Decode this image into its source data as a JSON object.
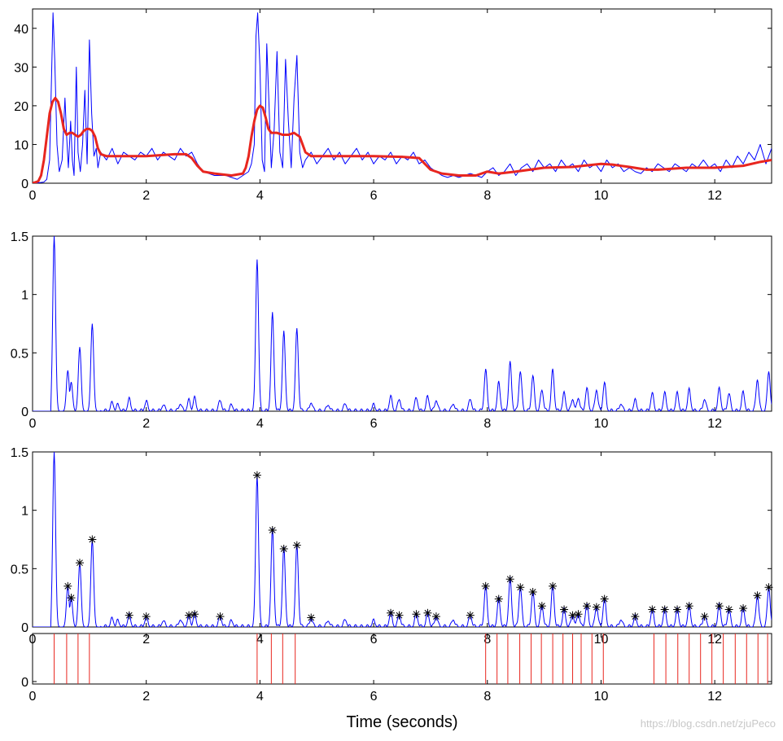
{
  "chart_data": [
    {
      "type": "line",
      "panel": "energy-envelope",
      "xlim": [
        0,
        13
      ],
      "ylim": [
        0,
        45
      ],
      "xticks": [
        "0",
        "2",
        "4",
        "6",
        "8",
        "10",
        "12"
      ],
      "yticks": [
        "0",
        "10",
        "20",
        "30",
        "40"
      ],
      "series": [
        {
          "name": "raw",
          "color": "#0000ff",
          "x": [
            0.0,
            0.1,
            0.2,
            0.25,
            0.3,
            0.33,
            0.36,
            0.39,
            0.43,
            0.47,
            0.52,
            0.57,
            0.6,
            0.63,
            0.67,
            0.7,
            0.73,
            0.77,
            0.8,
            0.84,
            0.88,
            0.92,
            0.96,
            1.0,
            1.04,
            1.08,
            1.12,
            1.15,
            1.2,
            1.3,
            1.4,
            1.5,
            1.6,
            1.7,
            1.8,
            1.9,
            2.0,
            2.1,
            2.2,
            2.3,
            2.4,
            2.5,
            2.6,
            2.7,
            2.8,
            2.9,
            3.0,
            3.2,
            3.4,
            3.6,
            3.7,
            3.8,
            3.85,
            3.9,
            3.93,
            3.96,
            4.0,
            4.04,
            4.08,
            4.12,
            4.16,
            4.2,
            4.25,
            4.3,
            4.35,
            4.4,
            4.45,
            4.5,
            4.55,
            4.6,
            4.65,
            4.7,
            4.75,
            4.8,
            4.9,
            5.0,
            5.1,
            5.2,
            5.3,
            5.4,
            5.5,
            5.6,
            5.7,
            5.8,
            5.9,
            6.0,
            6.1,
            6.2,
            6.3,
            6.4,
            6.5,
            6.6,
            6.7,
            6.8,
            6.9,
            7.0,
            7.1,
            7.2,
            7.3,
            7.4,
            7.5,
            7.6,
            7.7,
            7.8,
            7.9,
            8.0,
            8.1,
            8.2,
            8.3,
            8.4,
            8.5,
            8.6,
            8.7,
            8.8,
            8.9,
            9.0,
            9.1,
            9.2,
            9.3,
            9.4,
            9.5,
            9.6,
            9.7,
            9.8,
            9.9,
            10.0,
            10.1,
            10.2,
            10.3,
            10.4,
            10.5,
            10.6,
            10.7,
            10.8,
            10.9,
            11.0,
            11.1,
            11.2,
            11.3,
            11.4,
            11.5,
            11.6,
            11.7,
            11.8,
            11.9,
            12.0,
            12.1,
            12.2,
            12.3,
            12.4,
            12.5,
            12.6,
            12.7,
            12.8,
            12.9,
            13.0
          ],
          "y": [
            0,
            0.1,
            0.3,
            1,
            6,
            25,
            44,
            32,
            10,
            3,
            6,
            22,
            12,
            4,
            16,
            6,
            2,
            30,
            8,
            3,
            10,
            24,
            5,
            37,
            18,
            7,
            9,
            4,
            8,
            6,
            9,
            5,
            8,
            7,
            6,
            8,
            7,
            9,
            6,
            8,
            7,
            6,
            9,
            7,
            8,
            5,
            3,
            2,
            2,
            1,
            2,
            3,
            5,
            10,
            38,
            44,
            30,
            6,
            3,
            36,
            20,
            4,
            14,
            34,
            8,
            4,
            32,
            16,
            4,
            22,
            33,
            8,
            4,
            6,
            8,
            5,
            7,
            9,
            6,
            8,
            5,
            7,
            9,
            6,
            8,
            5,
            7,
            6,
            8,
            5,
            7,
            6,
            8,
            5,
            6,
            4,
            3,
            2,
            1.5,
            2,
            1.5,
            2,
            2.5,
            2,
            1.5,
            3,
            4,
            2,
            3,
            5,
            2,
            4,
            5,
            3,
            6,
            4,
            5,
            3,
            6,
            4,
            5,
            3,
            6,
            4,
            5,
            3,
            6,
            4,
            5,
            3,
            4,
            3,
            2.5,
            4,
            3,
            5,
            4,
            3,
            5,
            4,
            3,
            5,
            4,
            6,
            4,
            5,
            3,
            6,
            4,
            7,
            5,
            8,
            6,
            10,
            5,
            9
          ]
        },
        {
          "name": "smoothed",
          "color": "#e8261f",
          "x": [
            0.0,
            0.1,
            0.15,
            0.2,
            0.25,
            0.3,
            0.35,
            0.4,
            0.45,
            0.5,
            0.55,
            0.6,
            0.65,
            0.7,
            0.75,
            0.8,
            0.85,
            0.9,
            0.95,
            1.0,
            1.05,
            1.1,
            1.15,
            1.2,
            1.3,
            1.5,
            2.0,
            2.5,
            2.7,
            2.8,
            2.9,
            3.0,
            3.2,
            3.5,
            3.7,
            3.75,
            3.8,
            3.85,
            3.9,
            3.95,
            4.0,
            4.05,
            4.1,
            4.15,
            4.2,
            4.3,
            4.4,
            4.5,
            4.6,
            4.7,
            4.75,
            4.8,
            4.85,
            4.9,
            5.0,
            5.5,
            6.0,
            6.5,
            6.8,
            6.9,
            7.0,
            7.2,
            7.5,
            7.8,
            8.0,
            8.2,
            8.5,
            9.0,
            9.5,
            10.0,
            10.2,
            10.5,
            10.8,
            11.0,
            11.5,
            12.0,
            12.5,
            12.8,
            13.0
          ],
          "y": [
            0,
            0.5,
            2,
            6,
            12,
            18,
            21,
            22,
            21,
            18,
            14,
            12.5,
            13,
            13,
            12.5,
            12,
            12.5,
            13.5,
            14,
            14,
            13.5,
            12,
            9,
            7.5,
            7,
            7,
            7,
            7.5,
            7.5,
            6.5,
            4.5,
            3,
            2.5,
            2,
            2.5,
            4,
            7,
            12,
            16,
            19,
            20,
            19.5,
            17,
            14,
            13,
            13,
            12.5,
            12.5,
            13,
            12,
            10,
            8,
            7.5,
            7,
            7,
            7,
            7,
            6.8,
            6.5,
            5,
            3.5,
            2.5,
            2,
            2,
            3,
            2.5,
            3,
            4,
            4.2,
            5,
            4.8,
            4.2,
            3.5,
            3.5,
            4,
            4,
            4.5,
            5.5,
            6
          ]
        }
      ]
    },
    {
      "type": "line",
      "panel": "onset-strength",
      "xlim": [
        0,
        13
      ],
      "ylim": [
        0,
        1.5
      ],
      "xticks": [
        "0",
        "2",
        "4",
        "6",
        "8",
        "10",
        "12"
      ],
      "yticks": [
        "0",
        "0.5",
        "1",
        "1.5"
      ],
      "series": [
        {
          "name": "onset",
          "color": "#0000ff",
          "peaks": [
            [
              0.38,
              1.5
            ],
            [
              0.62,
              0.35
            ],
            [
              0.68,
              0.25
            ],
            [
              0.83,
              0.55
            ],
            [
              1.05,
              0.75
            ],
            [
              1.4,
              0.07
            ],
            [
              1.5,
              0.05
            ],
            [
              1.7,
              0.1
            ],
            [
              2.0,
              0.08
            ],
            [
              2.3,
              0.05
            ],
            [
              2.6,
              0.06
            ],
            [
              2.75,
              0.09
            ],
            [
              2.85,
              0.11
            ],
            [
              3.3,
              0.09
            ],
            [
              3.5,
              0.05
            ],
            [
              3.95,
              1.3
            ],
            [
              4.22,
              0.83
            ],
            [
              4.42,
              0.67
            ],
            [
              4.65,
              0.7
            ],
            [
              4.9,
              0.07
            ],
            [
              5.2,
              0.05
            ],
            [
              5.5,
              0.06
            ],
            [
              6.0,
              0.05
            ],
            [
              6.3,
              0.12
            ],
            [
              6.45,
              0.1
            ],
            [
              6.75,
              0.11
            ],
            [
              6.95,
              0.12
            ],
            [
              7.1,
              0.09
            ],
            [
              7.4,
              0.06
            ],
            [
              7.7,
              0.1
            ],
            [
              7.97,
              0.35
            ],
            [
              8.2,
              0.24
            ],
            [
              8.4,
              0.41
            ],
            [
              8.58,
              0.34
            ],
            [
              8.8,
              0.3
            ],
            [
              8.96,
              0.18
            ],
            [
              9.15,
              0.35
            ],
            [
              9.35,
              0.15
            ],
            [
              9.5,
              0.1
            ],
            [
              9.6,
              0.11
            ],
            [
              9.75,
              0.19
            ],
            [
              9.92,
              0.18
            ],
            [
              10.06,
              0.24
            ],
            [
              10.35,
              0.06
            ],
            [
              10.6,
              0.09
            ],
            [
              10.9,
              0.15
            ],
            [
              11.12,
              0.15
            ],
            [
              11.34,
              0.15
            ],
            [
              11.55,
              0.18
            ],
            [
              11.82,
              0.1
            ],
            [
              12.08,
              0.19
            ],
            [
              12.25,
              0.15
            ],
            [
              12.5,
              0.16
            ],
            [
              12.75,
              0.27
            ],
            [
              12.95,
              0.34
            ]
          ]
        }
      ]
    },
    {
      "type": "scatter",
      "panel": "peak-picking",
      "xlim": [
        0,
        13
      ],
      "ylim": [
        0,
        1.5
      ],
      "xticks": [
        "0",
        "2",
        "4",
        "6",
        "8",
        "10",
        "12"
      ],
      "yticks": [
        "0",
        "0.5",
        "1",
        "1.5"
      ],
      "marker": "*",
      "detected_peaks": [
        [
          0.62,
          0.35
        ],
        [
          0.68,
          0.25
        ],
        [
          0.83,
          0.55
        ],
        [
          1.05,
          0.75
        ],
        [
          1.7,
          0.1
        ],
        [
          2.0,
          0.09
        ],
        [
          2.75,
          0.1
        ],
        [
          2.85,
          0.11
        ],
        [
          3.3,
          0.09
        ],
        [
          3.95,
          1.3
        ],
        [
          4.22,
          0.83
        ],
        [
          4.42,
          0.67
        ],
        [
          4.65,
          0.7
        ],
        [
          4.9,
          0.08
        ],
        [
          6.3,
          0.12
        ],
        [
          6.45,
          0.1
        ],
        [
          6.75,
          0.11
        ],
        [
          6.95,
          0.12
        ],
        [
          7.1,
          0.09
        ],
        [
          7.7,
          0.1
        ],
        [
          7.97,
          0.35
        ],
        [
          8.2,
          0.24
        ],
        [
          8.4,
          0.41
        ],
        [
          8.58,
          0.34
        ],
        [
          8.8,
          0.3
        ],
        [
          8.96,
          0.18
        ],
        [
          9.15,
          0.35
        ],
        [
          9.35,
          0.15
        ],
        [
          9.5,
          0.1
        ],
        [
          9.6,
          0.11
        ],
        [
          9.75,
          0.18
        ],
        [
          9.92,
          0.17
        ],
        [
          10.06,
          0.24
        ],
        [
          10.6,
          0.09
        ],
        [
          10.9,
          0.15
        ],
        [
          11.12,
          0.15
        ],
        [
          11.34,
          0.15
        ],
        [
          11.55,
          0.18
        ],
        [
          11.82,
          0.09
        ],
        [
          12.08,
          0.18
        ],
        [
          12.25,
          0.15
        ],
        [
          12.5,
          0.16
        ],
        [
          12.75,
          0.27
        ],
        [
          12.95,
          0.34
        ]
      ]
    },
    {
      "type": "bar",
      "panel": "onset-times",
      "xlim": [
        0,
        13
      ],
      "xticks": [
        "0",
        "2",
        "4",
        "6",
        "8",
        "10",
        "12"
      ],
      "yticks": [
        "0"
      ],
      "xlabel": "Time (seconds)",
      "color": "#e8261f",
      "onsets": [
        0.38,
        0.6,
        0.8,
        1.0,
        3.95,
        4.2,
        4.4,
        4.62,
        7.97,
        8.17,
        8.36,
        8.57,
        8.77,
        8.95,
        9.15,
        9.33,
        9.5,
        9.65,
        9.84,
        10.04,
        10.93,
        11.14,
        11.35,
        11.55,
        11.75,
        11.95,
        12.15,
        12.36,
        12.56,
        12.76,
        12.93
      ]
    }
  ],
  "watermark": "https://blog.csdn.net/zjuPeco"
}
